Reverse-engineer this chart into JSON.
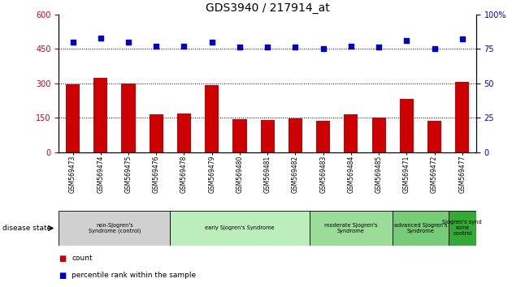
{
  "title": "GDS3940 / 217914_at",
  "samples": [
    "GSM569473",
    "GSM569474",
    "GSM569475",
    "GSM569476",
    "GSM569478",
    "GSM569479",
    "GSM569480",
    "GSM569481",
    "GSM569482",
    "GSM569483",
    "GSM569484",
    "GSM569485",
    "GSM569471",
    "GSM569472",
    "GSM569477"
  ],
  "counts": [
    295,
    325,
    300,
    165,
    168,
    290,
    142,
    140,
    148,
    135,
    165,
    152,
    230,
    135,
    305
  ],
  "percentile_ranks": [
    80,
    83,
    80,
    77,
    77,
    80,
    76,
    76,
    76,
    75,
    77,
    76,
    81,
    75,
    82
  ],
  "bar_color": "#cc0000",
  "dot_color": "#0000cc",
  "left_ylim": [
    0,
    600
  ],
  "right_ylim": [
    0,
    100
  ],
  "left_yticks": [
    0,
    150,
    300,
    450,
    600
  ],
  "right_yticks": [
    0,
    25,
    50,
    75,
    100
  ],
  "gridlines": [
    150,
    300,
    450
  ],
  "group_configs": [
    {
      "label": "non-Sjogren's\nSyndrome (control)",
      "start": 0,
      "end": 4,
      "color": "#d0d0d0"
    },
    {
      "label": "early Sjogren's Syndrome",
      "start": 4,
      "end": 9,
      "color": "#bbeebb"
    },
    {
      "label": "moderate Sjogren's\nSyndrome",
      "start": 9,
      "end": 12,
      "color": "#99dd99"
    },
    {
      "label": "advanced Sjogren's\nSyndrome",
      "start": 12,
      "end": 14,
      "color": "#77cc77"
    },
    {
      "label": "Sjogren's synd\nrome\ncontrol",
      "start": 14,
      "end": 15,
      "color": "#33aa33"
    }
  ],
  "disease_state_label": "disease state",
  "legend_count_color": "#cc0000",
  "legend_dot_color": "#0000cc",
  "tick_fontsize": 7,
  "title_fontsize": 10
}
